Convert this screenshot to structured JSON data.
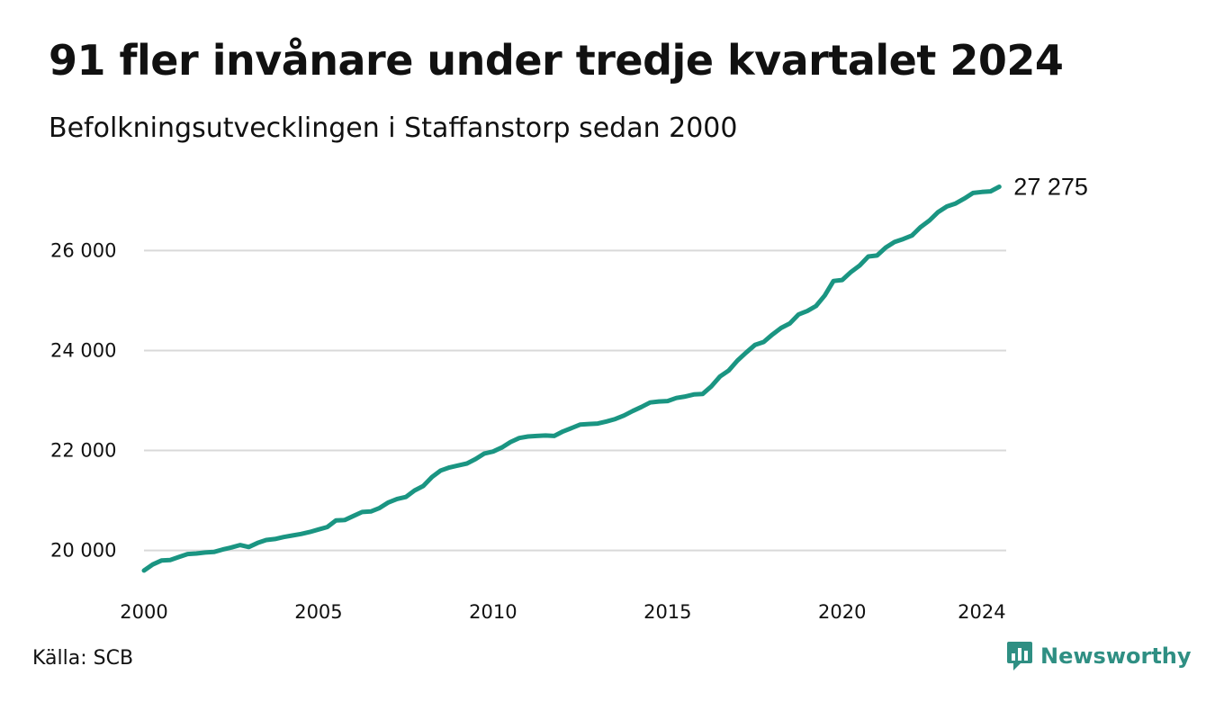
{
  "header": {
    "title": "91 fler invånare under tredje kvartalet 2024",
    "subtitle": "Befolkningsutvecklingen i Staffanstorp sedan 2000"
  },
  "footer": {
    "source": "Källa: SCB",
    "brand": "Newsworthy",
    "brand_icon": "bar-chart-speech-bubble-icon"
  },
  "chart_data": {
    "type": "line",
    "title": "91 fler invånare under tredje kvartalet 2024",
    "subtitle": "Befolkningsutvecklingen i Staffanstorp sedan 2000",
    "xlabel": "",
    "ylabel": "",
    "xlim": [
      2000,
      2024.75
    ],
    "ylim": [
      19400,
      27500
    ],
    "x_ticks": [
      2000,
      2005,
      2010,
      2015,
      2020,
      2024
    ],
    "x_tick_labels": [
      "2000",
      "2005",
      "2010",
      "2015",
      "2020",
      "2024"
    ],
    "y_ticks": [
      20000,
      22000,
      24000,
      26000
    ],
    "y_tick_labels": [
      "20 000",
      "22 000",
      "24 000",
      "26 000"
    ],
    "grid": "horizontal",
    "legend": "none",
    "line_color": "#1a9582",
    "end_label": "27 275",
    "series": [
      {
        "values": [
          [
            2000.0,
            19600
          ],
          [
            2000.25,
            19720
          ],
          [
            2000.5,
            19800
          ],
          [
            2000.75,
            19810
          ],
          [
            2001.0,
            19870
          ],
          [
            2001.25,
            19930
          ],
          [
            2001.5,
            19940
          ],
          [
            2001.75,
            19960
          ],
          [
            2002.0,
            19970
          ],
          [
            2002.25,
            20020
          ],
          [
            2002.5,
            20060
          ],
          [
            2002.75,
            20110
          ],
          [
            2003.0,
            20070
          ],
          [
            2003.25,
            20150
          ],
          [
            2003.5,
            20210
          ],
          [
            2003.75,
            20230
          ],
          [
            2004.0,
            20270
          ],
          [
            2004.25,
            20300
          ],
          [
            2004.5,
            20330
          ],
          [
            2004.75,
            20370
          ],
          [
            2005.0,
            20420
          ],
          [
            2005.25,
            20470
          ],
          [
            2005.5,
            20600
          ],
          [
            2005.75,
            20610
          ],
          [
            2006.0,
            20690
          ],
          [
            2006.25,
            20770
          ],
          [
            2006.5,
            20780
          ],
          [
            2006.75,
            20850
          ],
          [
            2007.0,
            20960
          ],
          [
            2007.25,
            21030
          ],
          [
            2007.5,
            21070
          ],
          [
            2007.75,
            21200
          ],
          [
            2008.0,
            21290
          ],
          [
            2008.25,
            21470
          ],
          [
            2008.5,
            21600
          ],
          [
            2008.75,
            21660
          ],
          [
            2009.0,
            21700
          ],
          [
            2009.25,
            21740
          ],
          [
            2009.5,
            21830
          ],
          [
            2009.75,
            21940
          ],
          [
            2010.0,
            21980
          ],
          [
            2010.25,
            22060
          ],
          [
            2010.5,
            22170
          ],
          [
            2010.75,
            22250
          ],
          [
            2011.0,
            22280
          ],
          [
            2011.25,
            22290
          ],
          [
            2011.5,
            22300
          ],
          [
            2011.75,
            22290
          ],
          [
            2012.0,
            22380
          ],
          [
            2012.25,
            22450
          ],
          [
            2012.5,
            22520
          ],
          [
            2012.75,
            22530
          ],
          [
            2013.0,
            22540
          ],
          [
            2013.25,
            22580
          ],
          [
            2013.5,
            22630
          ],
          [
            2013.75,
            22700
          ],
          [
            2014.0,
            22790
          ],
          [
            2014.25,
            22870
          ],
          [
            2014.5,
            22960
          ],
          [
            2014.75,
            22980
          ],
          [
            2015.0,
            22990
          ],
          [
            2015.25,
            23050
          ],
          [
            2015.5,
            23080
          ],
          [
            2015.75,
            23120
          ],
          [
            2016.0,
            23130
          ],
          [
            2016.25,
            23280
          ],
          [
            2016.5,
            23480
          ],
          [
            2016.75,
            23600
          ],
          [
            2017.0,
            23800
          ],
          [
            2017.25,
            23960
          ],
          [
            2017.5,
            24110
          ],
          [
            2017.75,
            24170
          ],
          [
            2018.0,
            24320
          ],
          [
            2018.25,
            24450
          ],
          [
            2018.5,
            24540
          ],
          [
            2018.75,
            24720
          ],
          [
            2019.0,
            24790
          ],
          [
            2019.25,
            24890
          ],
          [
            2019.5,
            25100
          ],
          [
            2019.75,
            25390
          ],
          [
            2020.0,
            25410
          ],
          [
            2020.25,
            25570
          ],
          [
            2020.5,
            25700
          ],
          [
            2020.75,
            25880
          ],
          [
            2021.0,
            25900
          ],
          [
            2021.25,
            26060
          ],
          [
            2021.5,
            26170
          ],
          [
            2021.75,
            26230
          ],
          [
            2022.0,
            26300
          ],
          [
            2022.25,
            26470
          ],
          [
            2022.5,
            26600
          ],
          [
            2022.75,
            26770
          ],
          [
            2023.0,
            26880
          ],
          [
            2023.25,
            26940
          ],
          [
            2023.5,
            27040
          ],
          [
            2023.75,
            27150
          ],
          [
            2024.0,
            27170
          ],
          [
            2024.25,
            27184
          ],
          [
            2024.5,
            27275
          ]
        ]
      }
    ]
  }
}
